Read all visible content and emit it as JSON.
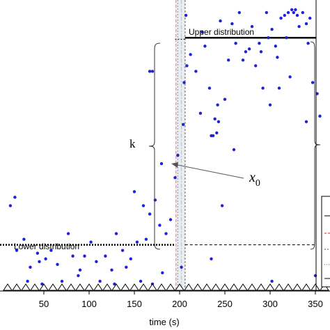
{
  "chart_data": {
    "type": "scatter",
    "xlabel": "time (s)",
    "xticks": [
      50,
      100,
      150,
      200,
      250,
      300,
      350
    ],
    "xlim": [
      0,
      365
    ],
    "ylim": [
      0,
      1
    ],
    "lower_level": 0.16,
    "upper_level": 0.9,
    "change_time": 200,
    "annotations": {
      "upper": "Upper distribution",
      "lower": "Lower distribution",
      "k": "k",
      "x0": "x",
      "x0_sub": "0"
    },
    "marker_times": [
      10,
      20,
      30,
      40,
      50,
      60,
      70,
      80,
      90,
      100,
      110,
      120,
      130,
      140,
      150,
      160,
      170,
      180,
      190,
      200,
      210,
      220,
      230,
      240,
      250,
      260,
      270,
      280,
      290,
      300,
      310,
      320,
      330,
      340,
      350,
      360
    ],
    "points": [
      [
        13,
        0.3
      ],
      [
        18,
        0.33
      ],
      [
        20,
        0.14
      ],
      [
        28,
        0.18
      ],
      [
        32,
        0.03
      ],
      [
        35,
        0.08
      ],
      [
        43,
        0.13
      ],
      [
        45,
        0.1
      ],
      [
        48,
        0.02
      ],
      [
        52,
        0.11
      ],
      [
        58,
        0.14
      ],
      [
        65,
        0.09
      ],
      [
        70,
        0.03
      ],
      [
        77,
        0.2
      ],
      [
        82,
        0.12
      ],
      [
        88,
        0.05
      ],
      [
        95,
        0.12
      ],
      [
        102,
        0.17
      ],
      [
        108,
        0.1
      ],
      [
        112,
        0.03
      ],
      [
        118,
        0.12
      ],
      [
        125,
        0.07
      ],
      [
        130,
        0.2
      ],
      [
        137,
        0.14
      ],
      [
        141,
        0.08
      ],
      [
        146,
        0.11
      ],
      [
        150,
        0.35
      ],
      [
        153,
        0.17
      ],
      [
        157,
        0.03
      ],
      [
        160,
        0.3
      ],
      [
        163,
        0.18
      ],
      [
        167,
        0.27
      ],
      [
        170,
        0.78
      ],
      [
        173,
        0.32
      ],
      [
        178,
        0.23
      ],
      [
        181,
        0.06
      ],
      [
        185,
        0.2
      ],
      [
        190,
        0.25
      ],
      [
        195,
        0.4
      ],
      [
        198,
        0.48
      ],
      [
        204,
        0.59
      ],
      [
        205,
        0.74
      ],
      [
        207,
        0.98
      ],
      [
        212,
        0.84
      ],
      [
        218,
        0.78
      ],
      [
        223,
        0.63
      ],
      [
        225,
        0.92
      ],
      [
        228,
        0.87
      ],
      [
        233,
        0.72
      ],
      [
        237,
        0.55
      ],
      [
        239,
        0.61
      ],
      [
        241,
        0.56
      ],
      [
        242,
        0.66
      ],
      [
        245,
        0.96
      ],
      [
        247,
        0.3
      ],
      [
        250,
        0.68
      ],
      [
        254,
        0.82
      ],
      [
        258,
        0.95
      ],
      [
        262,
        0.88
      ],
      [
        266,
        0.99
      ],
      [
        270,
        0.82
      ],
      [
        273,
        0.85
      ],
      [
        277,
        0.86
      ],
      [
        280,
        0.94
      ],
      [
        284,
        0.8
      ],
      [
        288,
        0.88
      ],
      [
        292,
        0.72
      ],
      [
        296,
        0.99
      ],
      [
        298,
        0.9
      ],
      [
        302,
        0.93
      ],
      [
        306,
        0.87
      ],
      [
        308,
        0.83
      ],
      [
        312,
        0.97
      ],
      [
        316,
        0.98
      ],
      [
        318,
        0.9
      ],
      [
        320,
        0.99
      ],
      [
        324,
        1.0
      ],
      [
        326,
        0.99
      ],
      [
        328,
        1.0
      ],
      [
        330,
        0.98
      ],
      [
        332,
        0.94
      ],
      [
        336,
        0.99
      ],
      [
        340,
        0.95
      ],
      [
        342,
        0.88
      ],
      [
        344,
        0.97
      ],
      [
        347,
        0.74
      ],
      [
        352,
        0.7
      ],
      [
        355,
        0.62
      ],
      [
        208,
        0.8
      ],
      [
        260,
        0.5
      ],
      [
        300,
        0.66
      ],
      [
        322,
        0.76
      ],
      [
        340,
        0.6
      ],
      [
        290,
        0.85
      ],
      [
        235,
        0.55
      ],
      [
        243,
        0.6
      ],
      [
        310,
        0.72
      ],
      [
        180,
        0.45
      ],
      [
        167,
        0.78
      ],
      [
        90,
        0.07
      ],
      [
        128,
        0.02
      ],
      [
        170,
        0.02
      ],
      [
        302,
        0.03
      ],
      [
        235,
        0.11
      ],
      [
        350,
        0.05
      ],
      [
        202,
        0.08
      ]
    ],
    "dashed_lines_x": [
      196,
      198,
      202,
      206
    ]
  }
}
